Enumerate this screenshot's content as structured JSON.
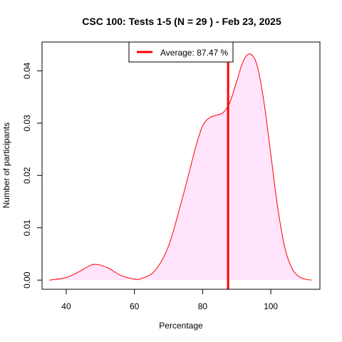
{
  "chart_data": {
    "type": "area",
    "title": "CSC 100: Tests 1-5 (N = 29 ) - Feb 23, 2025",
    "xlabel": "Percentage",
    "ylabel": "Number of participants",
    "xlim": [
      32.9,
      114.4
    ],
    "ylim": [
      -0.00175,
      0.0455
    ],
    "x_ticks": [
      40,
      60,
      80,
      100
    ],
    "y_ticks": [
      0.0,
      0.01,
      0.02,
      0.03,
      0.04
    ],
    "y_tick_labels": [
      "0.00",
      "0.01",
      "0.02",
      "0.03",
      "0.04"
    ],
    "series": [
      {
        "x": [
          35,
          40,
          44,
          48,
          52,
          56,
          60,
          62,
          66,
          70,
          74,
          76,
          78,
          80,
          82,
          84,
          86,
          88,
          90,
          92,
          94,
          96,
          98,
          100,
          102,
          104,
          106,
          108,
          110,
          112
        ],
        "y": [
          0.0,
          0.0005,
          0.0017,
          0.003,
          0.0024,
          0.0009,
          0.0002,
          0.0003,
          0.0018,
          0.0065,
          0.0155,
          0.0205,
          0.0255,
          0.0295,
          0.031,
          0.0315,
          0.032,
          0.034,
          0.038,
          0.042,
          0.0432,
          0.041,
          0.034,
          0.024,
          0.014,
          0.0065,
          0.0025,
          0.0008,
          0.0002,
          0.0
        ]
      }
    ],
    "average": 87.47,
    "legend": {
      "label": "Average: 87.47 %",
      "position": "top"
    },
    "colors": {
      "curve": "#ff0000",
      "fill": "#ffe4fb",
      "average_line": "#ff0000"
    },
    "grid": false
  }
}
